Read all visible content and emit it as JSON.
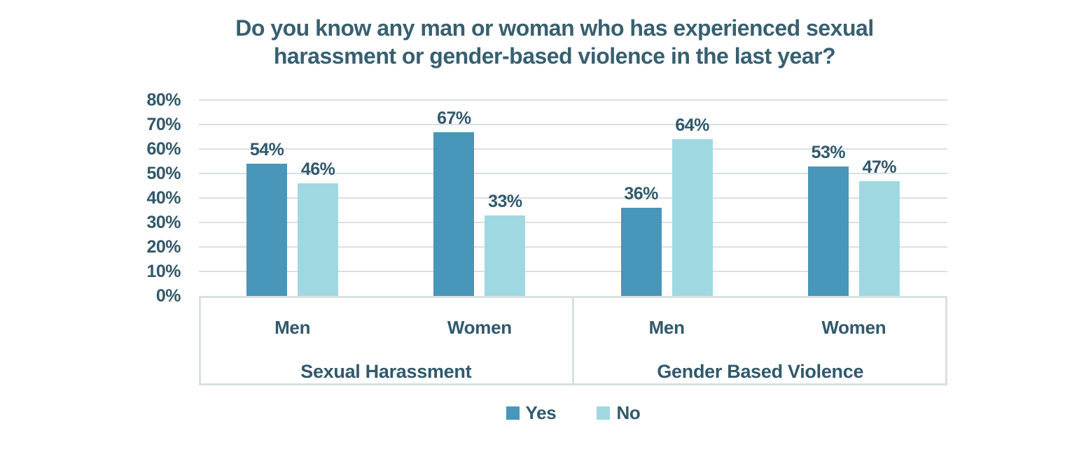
{
  "page": {
    "background_color": "#ffffff"
  },
  "chart_data": {
    "type": "bar",
    "title": "Do you know any man or woman who has experienced sexual harassment or gender-based violence in the last year?",
    "title_lines": [
      "Do you know any man or woman who has experienced sexual",
      "harassment or gender-based violence in the last year?"
    ],
    "xlabel": "",
    "ylabel": "",
    "ylim": [
      0,
      80
    ],
    "yticks": [
      "0%",
      "10%",
      "20%",
      "30%",
      "40%",
      "50%",
      "60%",
      "70%",
      "80%"
    ],
    "grid": true,
    "categories": [
      "Men",
      "Women",
      "Men",
      "Women"
    ],
    "groups": [
      {
        "label": "Sexual Harassment",
        "span": [
          0,
          1
        ]
      },
      {
        "label": "Gender Based Violence",
        "span": [
          2,
          3
        ]
      }
    ],
    "series": [
      {
        "name": "Yes",
        "color": "#4896B9",
        "values": [
          54,
          67,
          36,
          53
        ],
        "labels": [
          "54%",
          "67%",
          "36%",
          "53%"
        ]
      },
      {
        "name": "No",
        "color": "#A0D8E2",
        "values": [
          46,
          33,
          64,
          47
        ],
        "labels": [
          "46%",
          "33%",
          "64%",
          "47%"
        ]
      }
    ],
    "legend": {
      "position": "bottom",
      "entries": [
        "Yes",
        "No"
      ]
    },
    "colors": {
      "title_text": "#38606F",
      "axis_text": "#31596B",
      "data_label_text": "#31596B",
      "gridline": "#D8E0E4",
      "axis_box_border": "#D8E0E4"
    }
  }
}
